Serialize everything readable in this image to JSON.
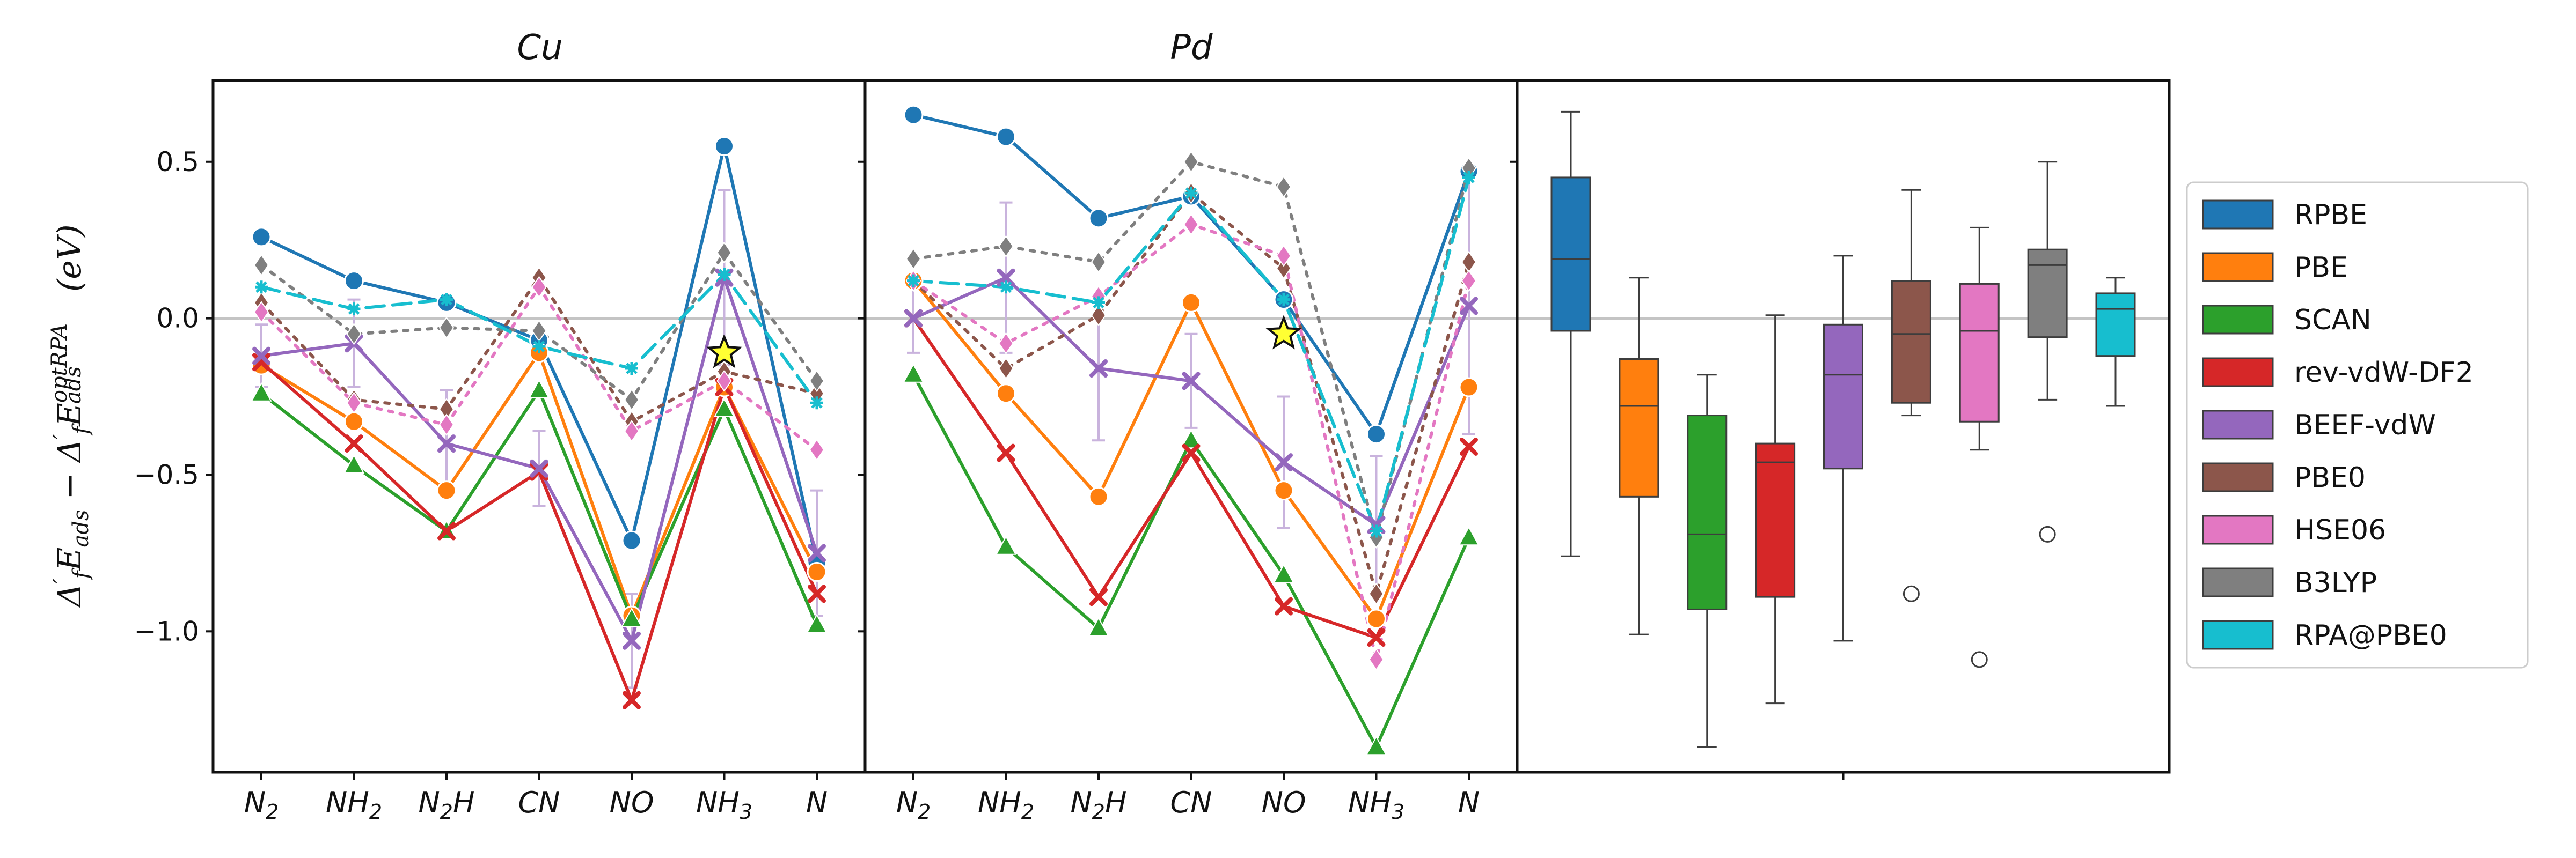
{
  "chart_data": {
    "type": "line",
    "ylabel": "Δ′fEads − Δ′fEads^optRPA (eV)",
    "ylabel_parts": {
      "d1": "Δ",
      "p1": "′",
      "s1": "f",
      "e1": "E",
      "s2": "ads",
      "minus": " − ",
      "d2": "Δ",
      "p2": "′",
      "s3": "f",
      "e2": "E",
      "s4": "ads",
      "sup": "optRPA",
      "unit": " (eV)"
    },
    "ylim": [
      -1.45,
      0.76
    ],
    "yticks": [
      0.5,
      0.0,
      -0.5,
      -1.0
    ],
    "ytick_labels": [
      "0.5",
      "0.0",
      "−0.5",
      "−1.0"
    ],
    "categories": [
      {
        "base": "N",
        "sub": "2"
      },
      {
        "base": "NH",
        "sub": "2"
      },
      {
        "base": "N",
        "sub": "2",
        "tail": "H"
      },
      {
        "base": "CN",
        "sub": ""
      },
      {
        "base": "NO",
        "sub": ""
      },
      {
        "base": "NH",
        "sub": "3"
      },
      {
        "base": "N",
        "sub": ""
      }
    ],
    "methods": [
      {
        "name": "RPBE",
        "color": "#1f77b4",
        "marker": "circle",
        "dash": "solid"
      },
      {
        "name": "PBE",
        "color": "#ff7f0e",
        "marker": "circle",
        "dash": "solid"
      },
      {
        "name": "SCAN",
        "color": "#2ca02c",
        "marker": "triangle",
        "dash": "solid"
      },
      {
        "name": "rev-vdW-DF2",
        "color": "#d62728",
        "marker": "x",
        "dash": "solid"
      },
      {
        "name": "BEEF-vdW",
        "color": "#9467bd",
        "marker": "x",
        "dash": "solid"
      },
      {
        "name": "PBE0",
        "color": "#8c564b",
        "marker": "diamond",
        "dash": "dotted"
      },
      {
        "name": "HSE06",
        "color": "#e377c2",
        "marker": "diamond",
        "dash": "dotted"
      },
      {
        "name": "B3LYP",
        "color": "#7f7f7f",
        "marker": "diamond",
        "dash": "dotted"
      },
      {
        "name": "RPA@PBE0",
        "color": "#17becf",
        "marker": "star",
        "dash": "dashed"
      }
    ],
    "panels": [
      {
        "title": "Cu",
        "series": {
          "RPBE": [
            0.26,
            0.12,
            0.05,
            -0.07,
            -0.71,
            0.55,
            -0.78
          ],
          "PBE": [
            -0.15,
            -0.33,
            -0.55,
            -0.11,
            -0.95,
            -0.22,
            -0.81
          ],
          "SCAN": [
            -0.24,
            -0.47,
            -0.68,
            -0.23,
            -0.96,
            -0.29,
            -0.98
          ],
          "rev-vdW-DF2": [
            -0.14,
            -0.4,
            -0.68,
            -0.49,
            -1.22,
            -0.22,
            -0.88
          ],
          "BEEF-vdW": [
            -0.12,
            -0.08,
            -0.4,
            -0.48,
            -1.03,
            0.13,
            -0.75
          ],
          "PBE0": [
            0.05,
            -0.26,
            -0.29,
            0.13,
            -0.33,
            -0.17,
            -0.24
          ],
          "HSE06": [
            0.02,
            -0.27,
            -0.34,
            0.1,
            -0.36,
            -0.2,
            -0.42
          ],
          "B3LYP": [
            0.17,
            -0.05,
            -0.03,
            -0.04,
            -0.26,
            0.21,
            -0.2
          ],
          "RPA@PBE0": [
            0.1,
            0.03,
            0.06,
            -0.09,
            -0.16,
            0.14,
            -0.27
          ]
        },
        "error_bar": {
          "method": "BEEF-vdW",
          "minus": [
            0.1,
            0.14,
            0.17,
            0.12,
            0.15,
            0.28,
            0.2
          ],
          "plus": [
            0.1,
            0.14,
            0.17,
            0.12,
            0.15,
            0.28,
            0.2
          ]
        },
        "highlight_star": {
          "category_index": 5,
          "value": -0.11
        }
      },
      {
        "title": "Pd",
        "series": {
          "RPBE": [
            0.65,
            0.58,
            0.32,
            0.39,
            0.06,
            -0.37,
            0.47
          ],
          "PBE": [
            0.12,
            -0.24,
            -0.57,
            0.05,
            -0.55,
            -0.96,
            -0.22
          ],
          "SCAN": [
            -0.18,
            -0.73,
            -0.99,
            -0.39,
            -0.82,
            -1.37,
            -0.7
          ],
          "rev-vdW-DF2": [
            0.0,
            -0.43,
            -0.89,
            -0.43,
            -0.92,
            -1.02,
            -0.41
          ],
          "BEEF-vdW": [
            0.0,
            0.13,
            -0.16,
            -0.2,
            -0.46,
            -0.66,
            0.04
          ],
          "PBE0": [
            0.12,
            -0.16,
            0.01,
            0.4,
            0.16,
            -0.88,
            0.18
          ],
          "HSE06": [
            0.12,
            -0.08,
            0.07,
            0.3,
            0.2,
            -1.09,
            0.12
          ],
          "B3LYP": [
            0.19,
            0.23,
            0.18,
            0.5,
            0.42,
            -0.7,
            0.48
          ],
          "RPA@PBE0": [
            0.12,
            0.1,
            0.05,
            0.4,
            0.06,
            -0.68,
            0.45
          ]
        },
        "error_bar": {
          "method": "BEEF-vdW",
          "minus": [
            0.11,
            0.24,
            0.23,
            0.15,
            0.21,
            0.22,
            0.41
          ],
          "plus": [
            0.11,
            0.24,
            0.23,
            0.15,
            0.21,
            0.22,
            0.41
          ]
        },
        "highlight_star": {
          "category_index": 4,
          "value": -0.05
        }
      }
    ],
    "boxplot": {
      "type": "box",
      "groups": [
        {
          "method": "RPBE",
          "q1": -0.04,
          "median": 0.19,
          "q3": 0.45,
          "whisker_low": -0.76,
          "whisker_high": 0.66,
          "outliers": []
        },
        {
          "method": "PBE",
          "q1": -0.57,
          "median": -0.28,
          "q3": -0.13,
          "whisker_low": -1.01,
          "whisker_high": 0.13,
          "outliers": []
        },
        {
          "method": "SCAN",
          "q1": -0.93,
          "median": -0.69,
          "q3": -0.31,
          "whisker_low": -1.37,
          "whisker_high": -0.18,
          "outliers": []
        },
        {
          "method": "rev-vdW-DF2",
          "q1": -0.89,
          "median": -0.46,
          "q3": -0.4,
          "whisker_low": -1.23,
          "whisker_high": 0.01,
          "outliers": []
        },
        {
          "method": "BEEF-vdW",
          "q1": -0.48,
          "median": -0.18,
          "q3": -0.02,
          "whisker_low": -1.03,
          "whisker_high": 0.2,
          "outliers": []
        },
        {
          "method": "PBE0",
          "q1": -0.27,
          "median": -0.05,
          "q3": 0.12,
          "whisker_low": -0.31,
          "whisker_high": 0.41,
          "outliers": [
            -0.88
          ]
        },
        {
          "method": "HSE06",
          "q1": -0.33,
          "median": -0.04,
          "q3": 0.11,
          "whisker_low": -0.42,
          "whisker_high": 0.29,
          "outliers": [
            -1.09
          ]
        },
        {
          "method": "B3LYP",
          "q1": -0.06,
          "median": 0.17,
          "q3": 0.22,
          "whisker_low": -0.26,
          "whisker_high": 0.5,
          "outliers": [
            -0.69
          ]
        },
        {
          "method": "RPA@PBE0",
          "q1": -0.12,
          "median": 0.03,
          "q3": 0.08,
          "whisker_low": -0.28,
          "whisker_high": 0.13,
          "outliers": []
        }
      ]
    },
    "legend": {
      "placement": "right",
      "entries": [
        "RPBE",
        "PBE",
        "SCAN",
        "rev-vdW-DF2",
        "BEEF-vdW",
        "PBE0",
        "HSE06",
        "B3LYP",
        "RPA@PBE0"
      ]
    },
    "reference_line": 0.0
  }
}
